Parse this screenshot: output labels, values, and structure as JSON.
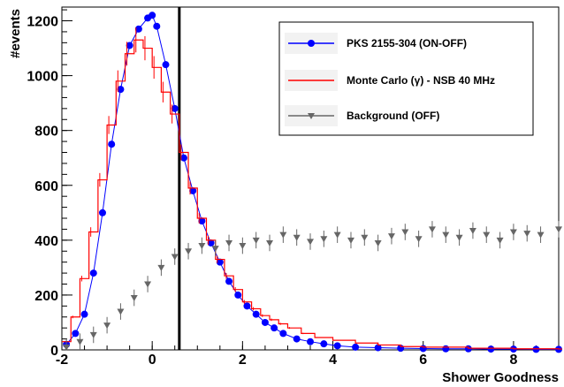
{
  "chart_data": {
    "type": "scatter",
    "xlabel": "Shower Goodness",
    "ylabel": "#events",
    "xlim": [
      -2,
      9
    ],
    "ylim": [
      0,
      1250
    ],
    "x_ticks": [
      -2,
      0,
      2,
      4,
      6,
      8
    ],
    "y_ticks": [
      0,
      200,
      400,
      600,
      800,
      1000,
      1200
    ],
    "grid": false,
    "legend_position": "top-right",
    "cut_line_x": 0.6,
    "series": [
      {
        "name": "PKS 2155-304 (ON-OFF)",
        "style": "points-line",
        "marker": "circle",
        "color": "#0000ff",
        "x": [
          -1.9,
          -1.7,
          -1.5,
          -1.3,
          -1.1,
          -0.9,
          -0.7,
          -0.5,
          -0.3,
          -0.1,
          0.0,
          0.1,
          0.3,
          0.5,
          0.7,
          0.9,
          1.1,
          1.3,
          1.5,
          1.7,
          1.9,
          2.1,
          2.3,
          2.5,
          2.7,
          2.9,
          3.2,
          3.5,
          3.8,
          4.1,
          4.5,
          5.0,
          5.5,
          6.0,
          6.5,
          7.0,
          7.5,
          8.0,
          8.5,
          9.0
        ],
        "y": [
          20,
          60,
          130,
          280,
          500,
          750,
          950,
          1110,
          1170,
          1210,
          1220,
          1180,
          1040,
          880,
          700,
          580,
          470,
          390,
          320,
          250,
          200,
          160,
          130,
          100,
          80,
          60,
          40,
          30,
          22,
          15,
          10,
          8,
          6,
          5,
          4,
          4,
          3,
          3,
          2,
          2
        ]
      },
      {
        "name": "Monte Carlo (γ) - NSB 40 MHz",
        "style": "step",
        "color": "#ff0000",
        "x": [
          -2.0,
          -1.8,
          -1.6,
          -1.4,
          -1.2,
          -1.0,
          -0.8,
          -0.6,
          -0.4,
          -0.2,
          0.0,
          0.2,
          0.4,
          0.6,
          0.8,
          1.0,
          1.2,
          1.4,
          1.6,
          1.8,
          2.0,
          2.2,
          2.4,
          2.6,
          2.8,
          3.0,
          3.3,
          3.6,
          4.0,
          4.5,
          5.0,
          5.5,
          6.0,
          7.0,
          8.0,
          9.0
        ],
        "y": [
          30,
          120,
          260,
          430,
          620,
          820,
          980,
          1080,
          1130,
          1100,
          1030,
          940,
          860,
          720,
          590,
          480,
          400,
          330,
          270,
          220,
          175,
          150,
          125,
          110,
          95,
          80,
          60,
          45,
          35,
          25,
          18,
          12,
          10,
          6,
          4,
          3
        ]
      },
      {
        "name": "Background (OFF)",
        "style": "points-errorbars",
        "marker": "triangle-down",
        "color": "#666666",
        "x": [
          -1.9,
          -1.6,
          -1.3,
          -1.0,
          -0.7,
          -0.4,
          -0.1,
          0.2,
          0.5,
          0.8,
          1.1,
          1.4,
          1.7,
          2.0,
          2.3,
          2.6,
          2.9,
          3.2,
          3.5,
          3.8,
          4.1,
          4.4,
          4.7,
          5.0,
          5.3,
          5.6,
          5.9,
          6.2,
          6.5,
          6.8,
          7.1,
          7.4,
          7.7,
          8.0,
          8.3,
          8.6,
          9.0
        ],
        "y": [
          10,
          30,
          55,
          90,
          140,
          190,
          240,
          300,
          340,
          360,
          380,
          370,
          390,
          380,
          400,
          390,
          420,
          410,
          395,
          405,
          420,
          400,
          410,
          390,
          415,
          430,
          405,
          440,
          420,
          410,
          435,
          420,
          400,
          430,
          425,
          420,
          440
        ]
      }
    ]
  }
}
